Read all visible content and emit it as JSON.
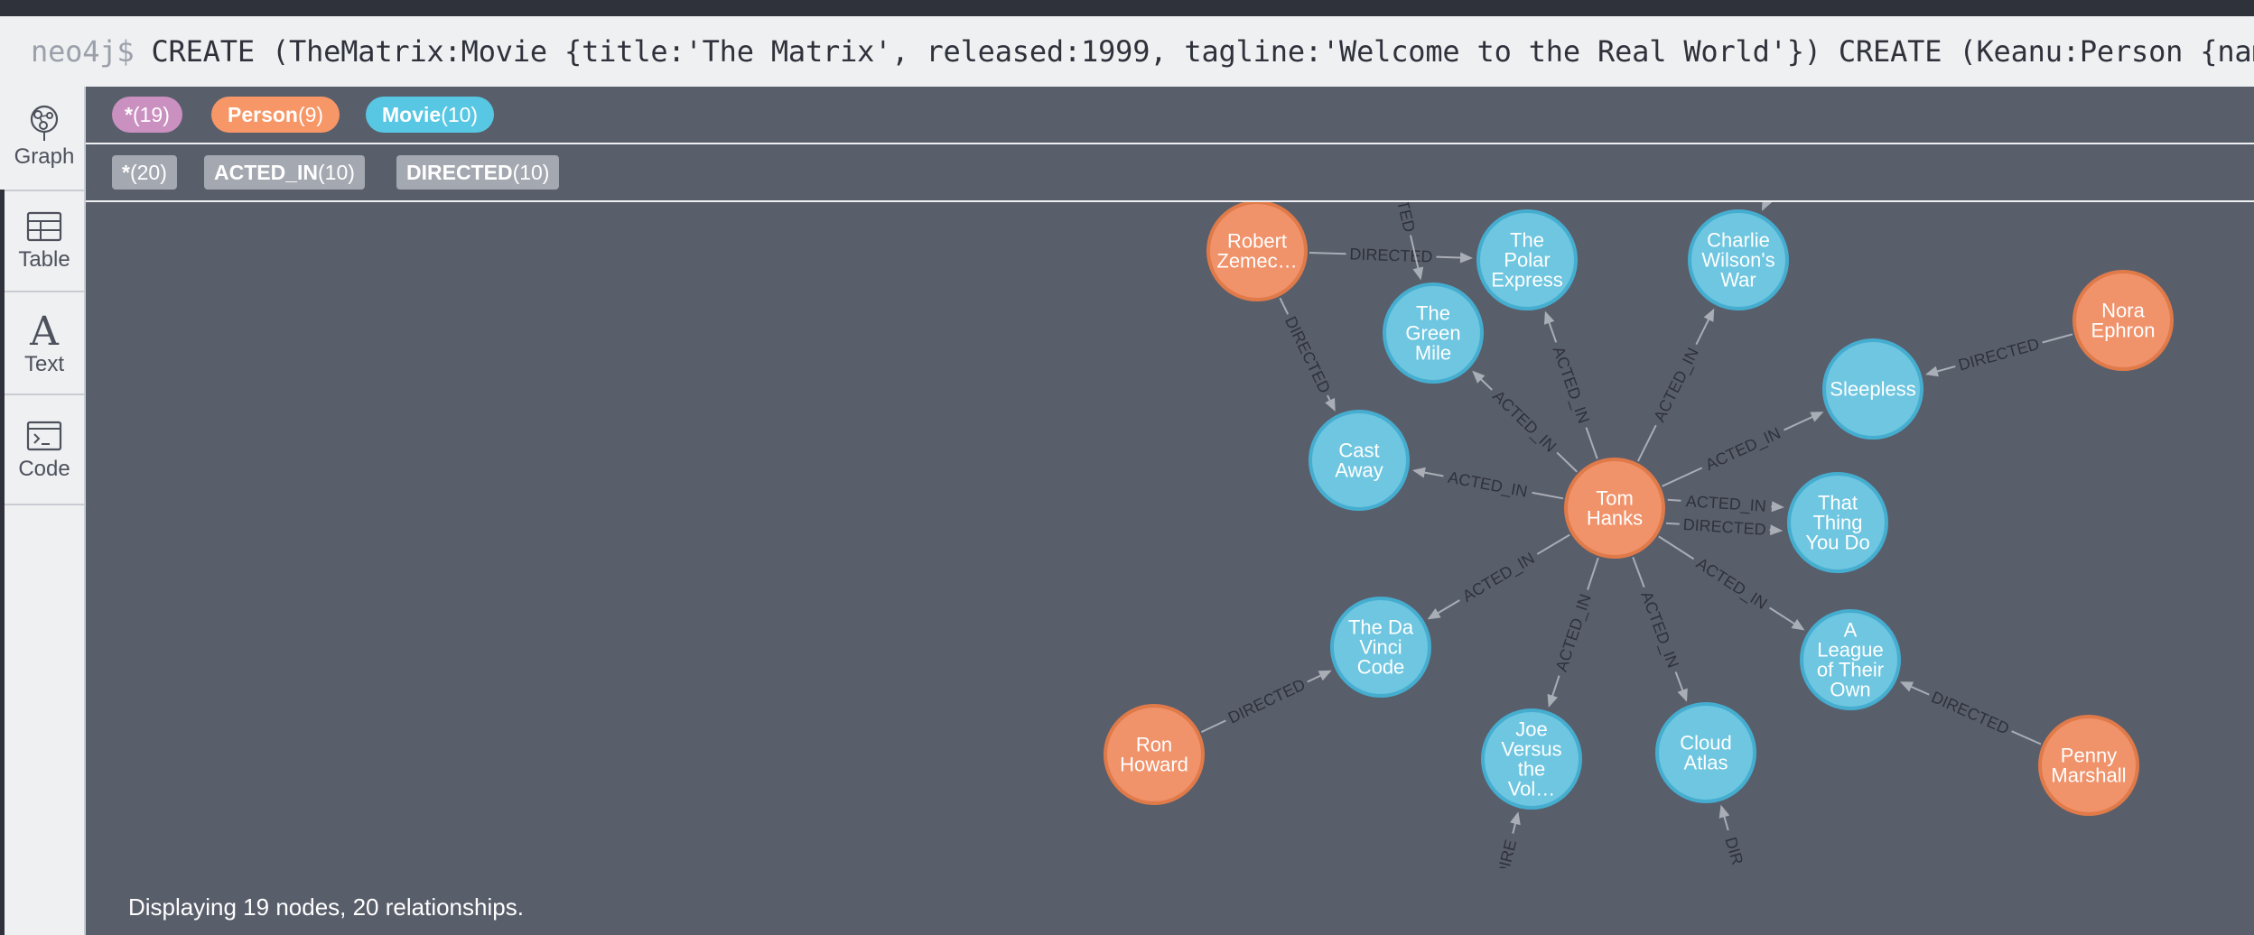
{
  "command": {
    "prompt": "neo4j$",
    "text": "CREATE (TheMatrix:Movie {title:'The Matrix', released:1999, tagline:'Welcome to the Real World'}) CREATE (Keanu:Person {name:"
  },
  "sidebar": {
    "items": [
      {
        "label": "Graph",
        "icon": "graph-icon",
        "active": true
      },
      {
        "label": "Table",
        "icon": "table-icon",
        "active": false
      },
      {
        "label": "Text",
        "icon": "text-icon",
        "active": false
      },
      {
        "label": "Code",
        "icon": "code-icon",
        "active": false
      }
    ]
  },
  "node_labels": [
    {
      "name": "*",
      "count": "(19)",
      "color": "#c990c0"
    },
    {
      "name": "Person",
      "count": "(9)",
      "color": "#f79767"
    },
    {
      "name": "Movie",
      "count": "(10)",
      "color": "#57c7e3"
    }
  ],
  "relationship_types": [
    {
      "name": "*",
      "count": "(20)"
    },
    {
      "name": "ACTED_IN",
      "count": "(10)"
    },
    {
      "name": "DIRECTED",
      "count": "(10)"
    }
  ],
  "colors": {
    "person_fill": "#f0926a",
    "person_stroke": "#e07a49",
    "movie_fill": "#6ec6e0",
    "movie_stroke": "#45aed0",
    "edge": "#a9adb5"
  },
  "graph": {
    "nodes": [
      {
        "id": "robert",
        "type": "Person",
        "lines": [
          "Robert",
          "Zemec…"
        ]
      },
      {
        "id": "polar",
        "type": "Movie",
        "lines": [
          "The",
          "Polar",
          "Express"
        ]
      },
      {
        "id": "greenmile",
        "type": "Movie",
        "lines": [
          "The",
          "Green",
          "Mile"
        ]
      },
      {
        "id": "charlie",
        "type": "Movie",
        "lines": [
          "Charlie",
          "Wilson's",
          "War"
        ]
      },
      {
        "id": "nora",
        "type": "Person",
        "lines": [
          "Nora",
          "Ephron"
        ]
      },
      {
        "id": "sleepless",
        "type": "Movie",
        "lines": [
          "Sleepless"
        ]
      },
      {
        "id": "castaway",
        "type": "Movie",
        "lines": [
          "Cast",
          "Away"
        ]
      },
      {
        "id": "tom",
        "type": "Person",
        "lines": [
          "Tom",
          "Hanks"
        ]
      },
      {
        "id": "thatthing",
        "type": "Movie",
        "lines": [
          "That",
          "Thing",
          "You Do"
        ]
      },
      {
        "id": "davinci",
        "type": "Movie",
        "lines": [
          "The Da",
          "Vinci",
          "Code"
        ]
      },
      {
        "id": "league",
        "type": "Movie",
        "lines": [
          "A",
          "League",
          "of Their",
          "Own"
        ]
      },
      {
        "id": "ron",
        "type": "Person",
        "lines": [
          "Ron",
          "Howard"
        ]
      },
      {
        "id": "joe",
        "type": "Movie",
        "lines": [
          "Joe",
          "Versus",
          "the",
          "Vol…"
        ]
      },
      {
        "id": "cloud",
        "type": "Movie",
        "lines": [
          "Cloud",
          "Atlas"
        ]
      },
      {
        "id": "penny",
        "type": "Person",
        "lines": [
          "Penny",
          "Marshall"
        ]
      }
    ],
    "edges": [
      {
        "from": "tom",
        "to": "castaway",
        "label": "ACTED_IN"
      },
      {
        "from": "tom",
        "to": "greenmile",
        "label": "ACTED_IN"
      },
      {
        "from": "tom",
        "to": "polar",
        "label": "ACTED_IN"
      },
      {
        "from": "tom",
        "to": "charlie",
        "label": "ACTED_IN"
      },
      {
        "from": "tom",
        "to": "sleepless",
        "label": "ACTED_IN"
      },
      {
        "from": "tom",
        "to": "thatthing",
        "label": "ACTED_IN"
      },
      {
        "from": "tom",
        "to": "thatthing",
        "label": "DIRECTED"
      },
      {
        "from": "tom",
        "to": "league",
        "label": "ACTED_IN"
      },
      {
        "from": "tom",
        "to": "cloud",
        "label": "ACTED_IN"
      },
      {
        "from": "tom",
        "to": "joe",
        "label": "ACTED_IN"
      },
      {
        "from": "tom",
        "to": "davinci",
        "label": "ACTED_IN"
      },
      {
        "from": "robert",
        "to": "polar",
        "label": "DIRECTED"
      },
      {
        "from": "robert",
        "to": "castaway",
        "label": "DIRECTED"
      },
      {
        "from": "nora",
        "to": "sleepless",
        "label": "DIRECTED"
      },
      {
        "from": "ron",
        "to": "davinci",
        "label": "DIRECTED"
      },
      {
        "from": "penny",
        "to": "league",
        "label": "DIRECTED"
      },
      {
        "from": "offscreen_a",
        "to": "greenmile",
        "label": "ACTED"
      },
      {
        "from": "offscreen_b",
        "to": "charlie",
        "label": ""
      },
      {
        "from": "offscreen_c",
        "to": "joe",
        "label": "DIRE"
      },
      {
        "from": "offscreen_d",
        "to": "cloud",
        "label": "DIR"
      }
    ]
  },
  "footer": {
    "status": "Displaying 19 nodes, 20 relationships."
  }
}
